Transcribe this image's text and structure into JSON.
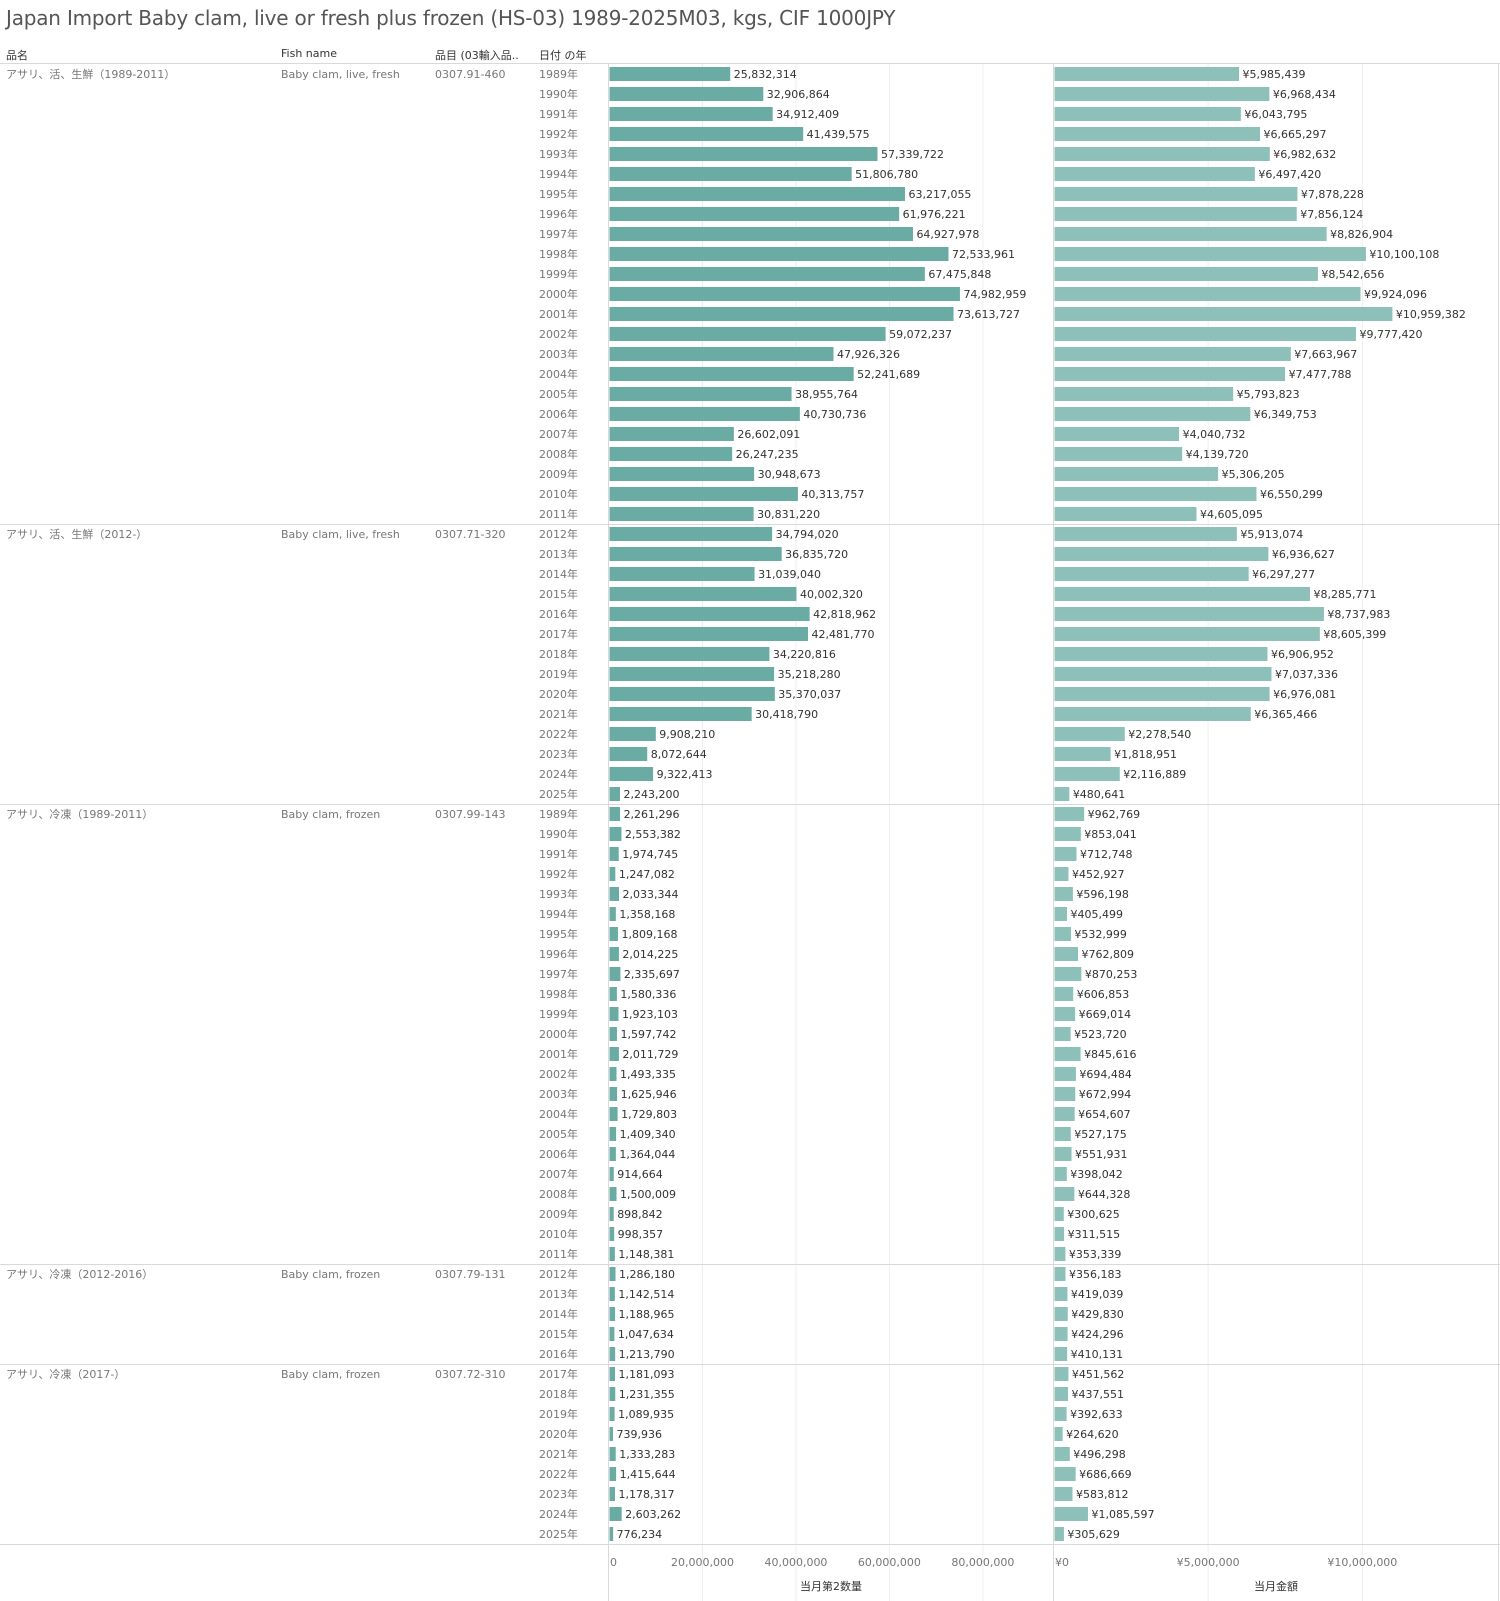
{
  "title": "Japan Import Baby clam, live or fresh plus frozen (HS-03) 1989-2025M03, kgs, CIF 1000JPY",
  "headers": {
    "product": "品名",
    "fish": "Fish name",
    "code": "品目 (03輸入品..",
    "year": "日付 の年"
  },
  "colors": {
    "bar_qty": "#6aaba4",
    "bar_val": "#8cc0b8",
    "label": "#333333",
    "muted": "#777777",
    "rule": "#d9d9d9",
    "grid": "#eeeeee"
  },
  "chart_data": [
    {
      "type": "bar",
      "orientation": "horizontal",
      "xlabel": "当月第2数量",
      "xlim": [
        0,
        95000000
      ],
      "ticks": [
        0,
        20000000,
        40000000,
        60000000,
        80000000
      ],
      "tick_labels": [
        "0",
        "20,000,000",
        "40,000,000",
        "60,000,000",
        "80,000,000"
      ],
      "label_prefix": "",
      "groups": [
        {
          "product": "アサリ、活、生鮮（1989-2011）",
          "fish": "Baby clam, live, fresh",
          "code": "0307.91-460",
          "years": [
            "1989年",
            "1990年",
            "1991年",
            "1992年",
            "1993年",
            "1994年",
            "1995年",
            "1996年",
            "1997年",
            "1998年",
            "1999年",
            "2000年",
            "2001年",
            "2002年",
            "2003年",
            "2004年",
            "2005年",
            "2006年",
            "2007年",
            "2008年",
            "2009年",
            "2010年",
            "2011年"
          ],
          "values": [
            25832314,
            32906864,
            34912409,
            41439575,
            57339722,
            51806780,
            63217055,
            61976221,
            64927978,
            72533961,
            67475848,
            74982959,
            73613727,
            59072237,
            47926326,
            52241689,
            38955764,
            40730736,
            26602091,
            26247235,
            30948673,
            40313757,
            30831220
          ]
        },
        {
          "product": "アサリ、活、生鮮（2012-）",
          "fish": "Baby clam, live, fresh",
          "code": "0307.71-320",
          "years": [
            "2012年",
            "2013年",
            "2014年",
            "2015年",
            "2016年",
            "2017年",
            "2018年",
            "2019年",
            "2020年",
            "2021年",
            "2022年",
            "2023年",
            "2024年",
            "2025年"
          ],
          "values": [
            34794020,
            36835720,
            31039040,
            40002320,
            42818962,
            42481770,
            34220816,
            35218280,
            35370037,
            30418790,
            9908210,
            8072644,
            9322413,
            2243200
          ]
        },
        {
          "product": "アサリ、冷凍（1989-2011）",
          "fish": "Baby clam, frozen",
          "code": "0307.99-143",
          "years": [
            "1989年",
            "1990年",
            "1991年",
            "1992年",
            "1993年",
            "1994年",
            "1995年",
            "1996年",
            "1997年",
            "1998年",
            "1999年",
            "2000年",
            "2001年",
            "2002年",
            "2003年",
            "2004年",
            "2005年",
            "2006年",
            "2007年",
            "2008年",
            "2009年",
            "2010年",
            "2011年"
          ],
          "values": [
            2261296,
            2553382,
            1974745,
            1247082,
            2033344,
            1358168,
            1809168,
            2014225,
            2335697,
            1580336,
            1923103,
            1597742,
            2011729,
            1493335,
            1625946,
            1729803,
            1409340,
            1364044,
            914664,
            1500009,
            898842,
            998357,
            1148381
          ]
        },
        {
          "product": "アサリ、冷凍（2012-2016）",
          "fish": "Baby clam, frozen",
          "code": "0307.79-131",
          "years": [
            "2012年",
            "2013年",
            "2014年",
            "2015年",
            "2016年"
          ],
          "values": [
            1286180,
            1142514,
            1188965,
            1047634,
            1213790
          ]
        },
        {
          "product": "アサリ、冷凍（2017-）",
          "fish": "Baby clam, frozen",
          "code": "0307.72-310",
          "years": [
            "2017年",
            "2018年",
            "2019年",
            "2020年",
            "2021年",
            "2022年",
            "2023年",
            "2024年",
            "2025年"
          ],
          "values": [
            1181093,
            1231355,
            1089935,
            739936,
            1333283,
            1415644,
            1178317,
            2603262,
            776234
          ]
        }
      ]
    },
    {
      "type": "bar",
      "orientation": "horizontal",
      "xlabel": "当月金額",
      "xlim": [
        0,
        14400000
      ],
      "ticks": [
        0,
        5000000,
        10000000
      ],
      "tick_labels": [
        "¥0",
        "¥5,000,000",
        "¥10,000,000"
      ],
      "label_prefix": "¥",
      "groups": [
        {
          "values": [
            5985439,
            6968434,
            6043795,
            6665297,
            6982632,
            6497420,
            7878228,
            7856124,
            8826904,
            10100108,
            8542656,
            9924096,
            10959382,
            9777420,
            7663967,
            7477788,
            5793823,
            6349753,
            4040732,
            4139720,
            5306205,
            6550299,
            4605095
          ]
        },
        {
          "values": [
            5913074,
            6936627,
            6297277,
            8285771,
            8737983,
            8605399,
            6906952,
            7037336,
            6976081,
            6365466,
            2278540,
            1818951,
            2116889,
            480641
          ]
        },
        {
          "values": [
            962769,
            853041,
            712748,
            452927,
            596198,
            405499,
            532999,
            762809,
            870253,
            606853,
            669014,
            523720,
            845616,
            694484,
            672994,
            654607,
            527175,
            551931,
            398042,
            644328,
            300625,
            311515,
            353339
          ]
        },
        {
          "values": [
            356183,
            419039,
            429830,
            424296,
            410131
          ]
        },
        {
          "values": [
            451562,
            437551,
            392633,
            264620,
            496298,
            686669,
            583812,
            1085597,
            305629
          ]
        }
      ]
    }
  ]
}
